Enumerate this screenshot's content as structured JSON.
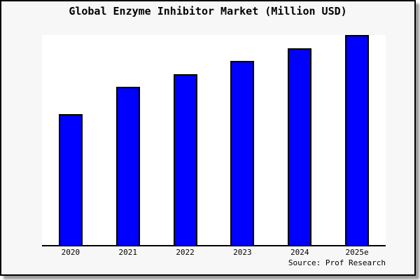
{
  "chart_data": {
    "type": "bar",
    "title": "Global Enzyme Inhibitor Market (Million USD)",
    "categories": [
      "2020",
      "2021",
      "2022",
      "2023",
      "2024",
      "2025e"
    ],
    "values": [
      62.5,
      75.2,
      81.5,
      87.7,
      93.7,
      100
    ],
    "values_note": "no y-axis ticks shown; values estimated as percent of tallest bar (2025e = 100)",
    "xlabel": "",
    "ylabel": "",
    "ylim": [
      0,
      100
    ],
    "grid": false,
    "legend": false,
    "bar_color": "#0000ff",
    "bar_border_color": "#000000",
    "plot_background": "#ffffff",
    "figure_background": "#f7f7f7",
    "source": "Source: Prof Research"
  }
}
